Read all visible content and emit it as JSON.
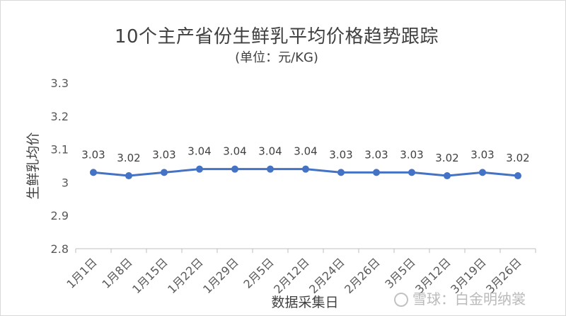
{
  "chart_data": {
    "type": "line",
    "title": "10个主产省份生鲜乳平均价格趋势跟踪",
    "subtitle": "(单位：元/KG)",
    "xlabel": "数据采集日",
    "ylabel": "生鲜乳均价",
    "categories": [
      "1月1日",
      "1月8日",
      "1月15日",
      "1月22日",
      "1月29日",
      "2月5日",
      "2月12日",
      "2月24日",
      "2月26日",
      "3月5日",
      "3月12日",
      "3月19日",
      "3月26日"
    ],
    "series": [
      {
        "values": [
          3.03,
          3.02,
          3.03,
          3.04,
          3.04,
          3.04,
          3.04,
          3.03,
          3.03,
          3.03,
          3.02,
          3.03,
          3.02
        ]
      }
    ],
    "ylim": [
      2.8,
      3.3
    ],
    "yticks": [
      "2.8",
      "2.9",
      "3",
      "3.1",
      "3.2",
      "3.3"
    ],
    "data_labels": [
      "3.03",
      "3.02",
      "3.03",
      "3.04",
      "3.04",
      "3.04",
      "3.04",
      "3.03",
      "3.03",
      "3.03",
      "3.02",
      "3.03",
      "3.02"
    ],
    "grid": false,
    "legend": "none",
    "line_color": "#4472c4"
  },
  "watermark": {
    "text": "雪球：白金明纳裳"
  }
}
